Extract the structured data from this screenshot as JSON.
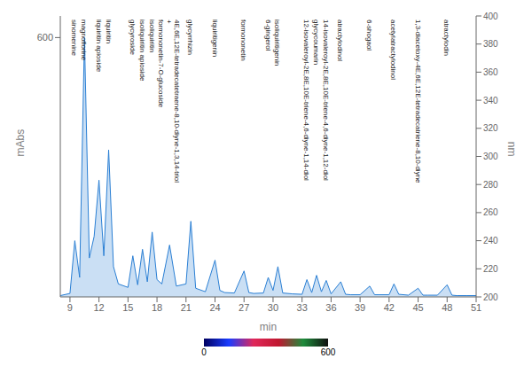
{
  "chart_data": {
    "type": "area",
    "color": "#2a7fd4",
    "x_label": "min",
    "y_label": "mAbs",
    "y2_label": "nm",
    "x": [
      8,
      9,
      9.5,
      10,
      10.5,
      11,
      11.5,
      12,
      12.5,
      13,
      13.5,
      14,
      15,
      15.5,
      16,
      16.5,
      17,
      17.5,
      18,
      18.5,
      19.3,
      20,
      21,
      21.5,
      22,
      23,
      24,
      24.5,
      25,
      26,
      27,
      27.5,
      28,
      29,
      29.5,
      30,
      30.5,
      31,
      32,
      33,
      33.5,
      34,
      34.5,
      35,
      35.5,
      36,
      37,
      37.5,
      38,
      39,
      40,
      40.5,
      41,
      42,
      42.5,
      43,
      44,
      45,
      45.5,
      46,
      47,
      48,
      48.5,
      49,
      50,
      51
    ],
    "values": [
      3,
      8,
      130,
      45,
      600,
      90,
      140,
      270,
      95,
      340,
      70,
      30,
      22,
      95,
      28,
      110,
      35,
      150,
      40,
      30,
      120,
      25,
      30,
      175,
      20,
      12,
      85,
      15,
      10,
      9,
      60,
      10,
      8,
      9,
      45,
      15,
      70,
      9,
      7,
      6,
      40,
      10,
      50,
      12,
      38,
      7,
      35,
      6,
      5,
      5,
      25,
      5,
      5,
      5,
      30,
      6,
      4,
      20,
      4,
      4,
      4,
      28,
      4,
      3,
      3,
      3
    ],
    "xlim": [
      8,
      51
    ],
    "xticks": [
      9,
      12,
      15,
      18,
      21,
      24,
      27,
      30,
      33,
      36,
      39,
      42,
      45,
      48,
      51
    ],
    "ylim": [
      0,
      650
    ],
    "yticks": [
      600
    ],
    "y2lim": [
      200,
      400
    ],
    "y2ticks": [
      200,
      220,
      240,
      260,
      280,
      300,
      320,
      340,
      360,
      380,
      400
    ],
    "color_bar": {
      "range": [
        0,
        600
      ],
      "ticks": [
        0,
        600
      ],
      "colors": [
        "#000060",
        "#1a3cff",
        "#e0285a",
        "#c01830",
        "#1e8c3c",
        "#101010"
      ]
    },
    "annotations": [
      {
        "lines": [
          "sinomenine"
        ],
        "x": 9.5
      },
      {
        "lines": [
          "magnoflorine"
        ],
        "x": 10.5
      },
      {
        "lines": [
          "liquiritin apioside"
        ],
        "x": 12
      },
      {
        "lines": [
          "liquiritin"
        ],
        "x": 13
      },
      {
        "lines": [
          "glycyroside"
        ],
        "x": 15.5
      },
      {
        "lines": [
          "isoliquiritin apioside"
        ],
        "x": 16.5
      },
      {
        "lines": [
          "isoliquiritin"
        ],
        "x": 17.5
      },
      {
        "lines": [
          "formononetin-7-O-glucoside",
          "+",
          "4E,6E,12E-tetradecatetraene-8,10-diyne-1,3,14-triol"
        ],
        "x": 19.3
      },
      {
        "lines": [
          "glycyrrhizin"
        ],
        "x": 21.5
      },
      {
        "lines": [
          "liquiritigenin"
        ],
        "x": 24
      },
      {
        "lines": [
          "formononetin"
        ],
        "x": 27
      },
      {
        "lines": [
          "6-gingerol"
        ],
        "x": 29.5
      },
      {
        "lines": [
          "isoliquiritigenin"
        ],
        "x": 30.5
      },
      {
        "lines": [
          "12-isovaleroyl-2E,8E,10E-triene-4,6-diyne-1,14-diol"
        ],
        "x": 33.5
      },
      {
        "lines": [
          "glycycoumarin"
        ],
        "x": 34.5
      },
      {
        "lines": [
          "14-isovaleroyl-2E,8E,10E-triene-4,6-diyne-1,12-diol"
        ],
        "x": 35.5
      },
      {
        "lines": [
          "atractylodinol"
        ],
        "x": 37
      },
      {
        "lines": [
          "6-shogaol"
        ],
        "x": 40
      },
      {
        "lines": [
          "acetylatractylodinol"
        ],
        "x": 42.5
      },
      {
        "lines": [
          "1,3-diacetoxy-4E,6E,12E-tetradecatriene-8,10-diyne"
        ],
        "x": 45
      },
      {
        "lines": [
          "atractylodin"
        ],
        "x": 48
      }
    ]
  }
}
